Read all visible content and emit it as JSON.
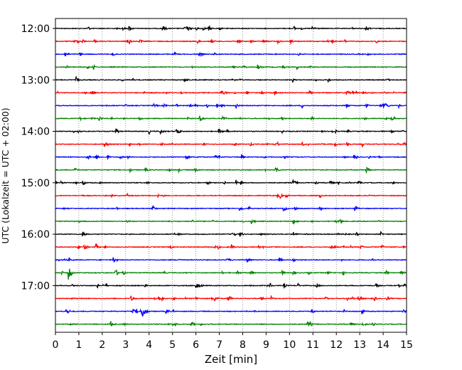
{
  "chart_data": {
    "type": "line",
    "subtype": "helicorder",
    "title": "",
    "xlabel": "Zeit  [min]",
    "ylabel": "UTC (Lokalzeit = UTC + 02:00)",
    "xlim": [
      0,
      15
    ],
    "x_ticks": [
      0,
      1,
      2,
      3,
      4,
      5,
      6,
      7,
      8,
      9,
      10,
      11,
      12,
      13,
      14,
      15
    ],
    "y_ticks": [
      "12:00",
      "13:00",
      "14:00",
      "15:00",
      "16:00",
      "17:00"
    ],
    "grid": "vertical dotted at each minute",
    "trace_interval_min": 15,
    "trace_colors": [
      "#000000",
      "#ff0000",
      "#0000ff",
      "#008000"
    ],
    "rows": [
      "12:00",
      "12:15",
      "12:30",
      "12:45",
      "13:00",
      "13:15",
      "13:30",
      "13:45",
      "14:00",
      "14:15",
      "14:30",
      "14:45",
      "15:00",
      "15:15",
      "15:30",
      "15:45",
      "16:00",
      "16:15",
      "16:30",
      "16:45",
      "17:00",
      "17:15",
      "17:30",
      "17:45"
    ],
    "events": [
      {
        "row": "16:45",
        "minute": 0.55,
        "amplitude": 10
      },
      {
        "row": "17:30",
        "minute": 3.7,
        "amplitude": 12
      }
    ]
  }
}
